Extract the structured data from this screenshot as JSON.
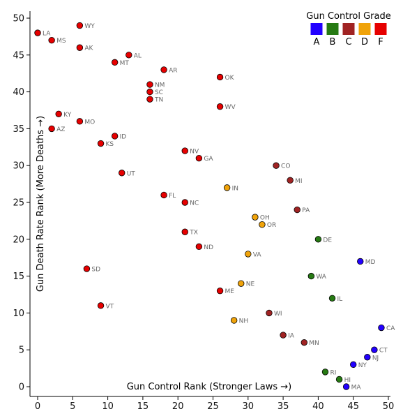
{
  "chart_data": {
    "type": "scatter",
    "title": "",
    "xlabel": "Gun Control Rank (Stronger Laws →)",
    "ylabel": "Gun Death Rate Rank (More Deaths →)",
    "xlim": [
      0,
      50
    ],
    "ylim": [
      0,
      50
    ],
    "xticks": [
      0,
      5,
      10,
      15,
      20,
      25,
      30,
      35,
      40,
      45,
      50
    ],
    "yticks": [
      0,
      5,
      10,
      15,
      20,
      25,
      30,
      35,
      40,
      45,
      50
    ],
    "grid": false,
    "legend": {
      "title": "Gun Control Grade",
      "position": "top-right",
      "entries": [
        {
          "grade": "A",
          "color": "#2200ff"
        },
        {
          "grade": "B",
          "color": "#267a13"
        },
        {
          "grade": "C",
          "color": "#a02323"
        },
        {
          "grade": "D",
          "color": "#f0a30a"
        },
        {
          "grade": "F",
          "color": "#e60000"
        }
      ]
    },
    "points": [
      {
        "label": "LA",
        "x": 0,
        "y": 48,
        "grade": "F"
      },
      {
        "label": "MS",
        "x": 2,
        "y": 47,
        "grade": "F"
      },
      {
        "label": "WY",
        "x": 6,
        "y": 49,
        "grade": "F"
      },
      {
        "label": "AK",
        "x": 6,
        "y": 46,
        "grade": "F"
      },
      {
        "label": "AL",
        "x": 13,
        "y": 45,
        "grade": "F"
      },
      {
        "label": "MT",
        "x": 11,
        "y": 44,
        "grade": "F"
      },
      {
        "label": "AR",
        "x": 18,
        "y": 43,
        "grade": "F"
      },
      {
        "label": "OK",
        "x": 26,
        "y": 42,
        "grade": "F"
      },
      {
        "label": "NM",
        "x": 16,
        "y": 41,
        "grade": "F"
      },
      {
        "label": "SC",
        "x": 16,
        "y": 40,
        "grade": "F"
      },
      {
        "label": "TN",
        "x": 16,
        "y": 39,
        "grade": "F"
      },
      {
        "label": "WV",
        "x": 26,
        "y": 38,
        "grade": "F"
      },
      {
        "label": "KY",
        "x": 3,
        "y": 37,
        "grade": "F"
      },
      {
        "label": "MO",
        "x": 6,
        "y": 36,
        "grade": "F"
      },
      {
        "label": "AZ",
        "x": 2,
        "y": 35,
        "grade": "F"
      },
      {
        "label": "ID",
        "x": 11,
        "y": 34,
        "grade": "F"
      },
      {
        "label": "KS",
        "x": 9,
        "y": 33,
        "grade": "F"
      },
      {
        "label": "NV",
        "x": 21,
        "y": 32,
        "grade": "F"
      },
      {
        "label": "GA",
        "x": 23,
        "y": 31,
        "grade": "F"
      },
      {
        "label": "CO",
        "x": 34,
        "y": 30,
        "grade": "C"
      },
      {
        "label": "UT",
        "x": 12,
        "y": 29,
        "grade": "F"
      },
      {
        "label": "MI",
        "x": 36,
        "y": 28,
        "grade": "C"
      },
      {
        "label": "IN",
        "x": 27,
        "y": 27,
        "grade": "D"
      },
      {
        "label": "FL",
        "x": 18,
        "y": 26,
        "grade": "F"
      },
      {
        "label": "NC",
        "x": 21,
        "y": 25,
        "grade": "F"
      },
      {
        "label": "PA",
        "x": 37,
        "y": 24,
        "grade": "C"
      },
      {
        "label": "OH",
        "x": 31,
        "y": 23,
        "grade": "D"
      },
      {
        "label": "OR",
        "x": 32,
        "y": 22,
        "grade": "D"
      },
      {
        "label": "TX",
        "x": 21,
        "y": 21,
        "grade": "F"
      },
      {
        "label": "DE",
        "x": 40,
        "y": 20,
        "grade": "B"
      },
      {
        "label": "ND",
        "x": 23,
        "y": 19,
        "grade": "F"
      },
      {
        "label": "VA",
        "x": 30,
        "y": 18,
        "grade": "D"
      },
      {
        "label": "MD",
        "x": 46,
        "y": 17,
        "grade": "A"
      },
      {
        "label": "SD",
        "x": 7,
        "y": 16,
        "grade": "F"
      },
      {
        "label": "WA",
        "x": 39,
        "y": 15,
        "grade": "B"
      },
      {
        "label": "NE",
        "x": 29,
        "y": 14,
        "grade": "D"
      },
      {
        "label": "ME",
        "x": 26,
        "y": 13,
        "grade": "F"
      },
      {
        "label": "IL",
        "x": 42,
        "y": 12,
        "grade": "B"
      },
      {
        "label": "VT",
        "x": 9,
        "y": 11,
        "grade": "F"
      },
      {
        "label": "WI",
        "x": 33,
        "y": 10,
        "grade": "C"
      },
      {
        "label": "NH",
        "x": 28,
        "y": 9,
        "grade": "D"
      },
      {
        "label": "CA",
        "x": 49,
        "y": 8,
        "grade": "A"
      },
      {
        "label": "IA",
        "x": 35,
        "y": 7,
        "grade": "C"
      },
      {
        "label": "MN",
        "x": 38,
        "y": 6,
        "grade": "C"
      },
      {
        "label": "CT",
        "x": 48,
        "y": 5,
        "grade": "A"
      },
      {
        "label": "NJ",
        "x": 47,
        "y": 4,
        "grade": "A"
      },
      {
        "label": "NY",
        "x": 45,
        "y": 3,
        "grade": "A"
      },
      {
        "label": "RI",
        "x": 41,
        "y": 2,
        "grade": "B"
      },
      {
        "label": "HI",
        "x": 43,
        "y": 1,
        "grade": "B"
      },
      {
        "label": "MA",
        "x": 44,
        "y": 0,
        "grade": "A"
      }
    ]
  }
}
